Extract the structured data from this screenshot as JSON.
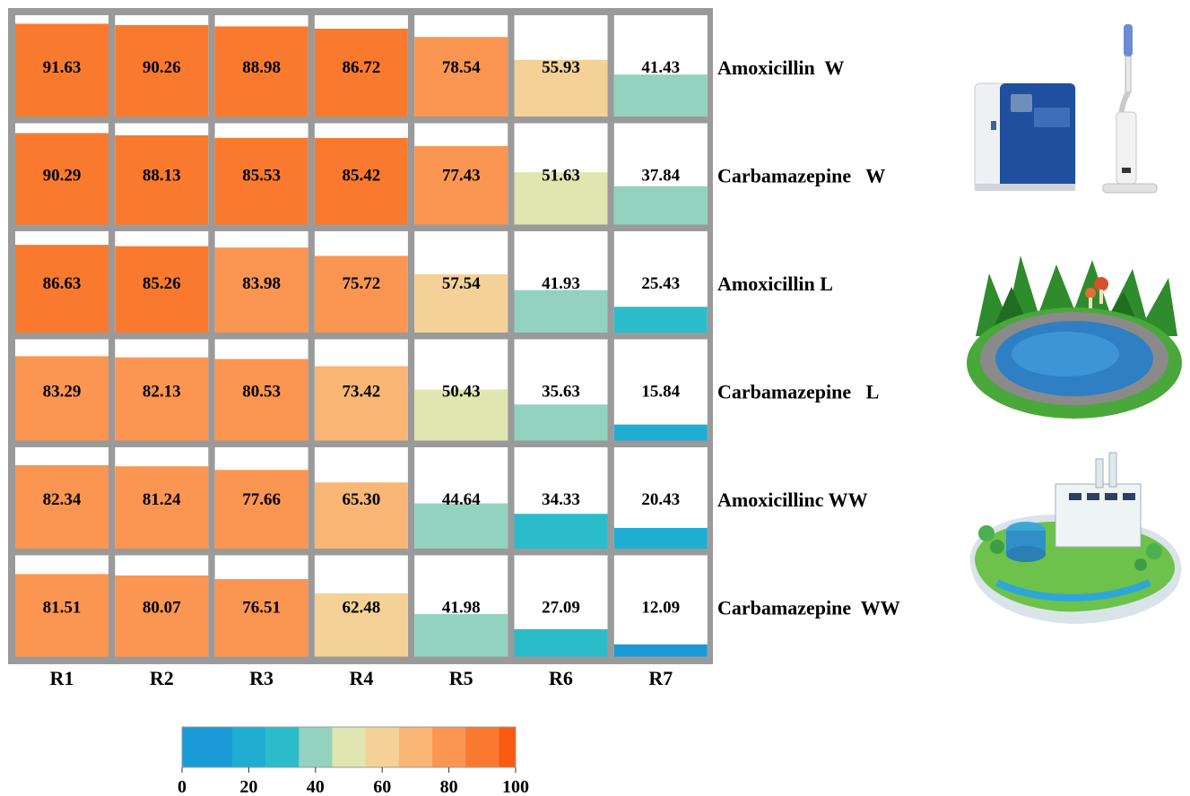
{
  "chart_data": {
    "type": "heatmap",
    "columns": [
      "R1",
      "R2",
      "R3",
      "R4",
      "R5",
      "R6",
      "R7"
    ],
    "rows": [
      "Amoxicillin  W",
      "Carbamazepine   W",
      "Amoxicillin L",
      "Carbamazepine   L",
      "Amoxicillinc WW",
      "Carbamazepine  WW"
    ],
    "values": [
      [
        91.63,
        90.26,
        88.98,
        86.72,
        78.54,
        55.93,
        41.43
      ],
      [
        90.29,
        88.13,
        85.53,
        85.42,
        77.43,
        51.63,
        37.84
      ],
      [
        86.63,
        85.26,
        83.98,
        75.72,
        57.54,
        41.93,
        25.43
      ],
      [
        83.29,
        82.13,
        80.53,
        73.42,
        50.43,
        35.63,
        15.84
      ],
      [
        82.34,
        81.24,
        77.66,
        65.3,
        44.64,
        34.33,
        20.43
      ],
      [
        81.51,
        80.07,
        76.51,
        62.48,
        41.98,
        27.09,
        12.09
      ]
    ],
    "value_range": [
      0,
      100
    ],
    "colorbar": {
      "ticks": [
        0,
        20,
        40,
        60,
        80,
        100
      ],
      "bins": [
        {
          "from": 0,
          "to": 15,
          "color": "#1a9ad6"
        },
        {
          "from": 15,
          "to": 25,
          "color": "#1fadd2"
        },
        {
          "from": 25,
          "to": 35,
          "color": "#2bbcc9"
        },
        {
          "from": 35,
          "to": 45,
          "color": "#92d2be"
        },
        {
          "from": 45,
          "to": 55,
          "color": "#dfe6b0"
        },
        {
          "from": 55,
          "to": 65,
          "color": "#f4d197"
        },
        {
          "from": 65,
          "to": 75,
          "color": "#f9b674"
        },
        {
          "from": 75,
          "to": 85,
          "color": "#fb9552"
        },
        {
          "from": 85,
          "to": 95,
          "color": "#f97a2e"
        },
        {
          "from": 95,
          "to": 100,
          "color": "#fb5a12"
        }
      ]
    },
    "grid_color": "#9a9a9a"
  },
  "illustrations": [
    {
      "name": "water-purifier-illustration",
      "row_label": "W"
    },
    {
      "name": "pond-illustration",
      "row_label": "L"
    },
    {
      "name": "treatment-plant-illustration",
      "row_label": "WW"
    }
  ]
}
